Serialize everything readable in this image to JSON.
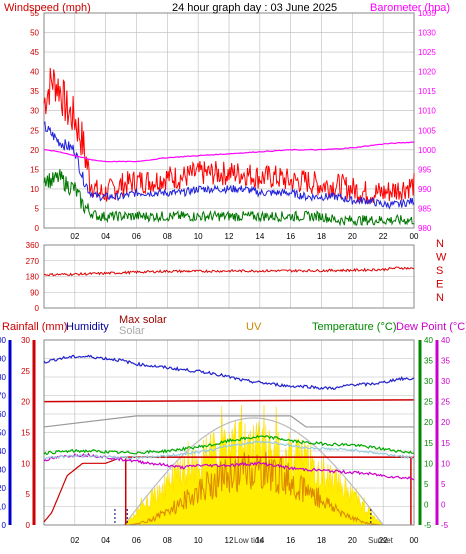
{
  "colors": {
    "wind_left": "#cc0000",
    "baro": "#ff00ff",
    "title": "#000000",
    "dir_letters": "#cc0000",
    "rain": "#cc0000",
    "humidity": "#000099",
    "maxsolar": "#990000",
    "solar": "#aaaaaa",
    "uv": "#cc8800",
    "temp": "#008800",
    "dew": "#cc00cc",
    "grid": "#bbbbbb",
    "blue_axis": "#0000cc"
  },
  "chart_data": [
    {
      "type": "line",
      "title": "24 hour graph day : 03 June 2025",
      "ylabel_left": "Windspeed (mph)",
      "ylabel_right": "Barometer (hpa)",
      "x_ticks": [
        "02",
        "04",
        "06",
        "08",
        "10",
        "12",
        "14",
        "16",
        "18",
        "20",
        "22",
        "00"
      ],
      "xlim_hours": [
        0,
        24
      ],
      "ylim_left": [
        0,
        55
      ],
      "y_ticks_left": [
        "0",
        "5",
        "10",
        "15",
        "20",
        "25",
        "30",
        "35",
        "40",
        "45",
        "50",
        "55"
      ],
      "ylim_right": [
        980,
        1035
      ],
      "y_ticks_right": [
        "980",
        "985",
        "990",
        "995",
        "1000",
        "1005",
        "1010",
        "1015",
        "1020",
        "1025",
        "1030",
        "1035"
      ],
      "grid": true,
      "series": [
        {
          "name": "gust",
          "color": "#ff0000",
          "x": [
            0,
            0.5,
            1,
            1.5,
            2,
            2.5,
            3,
            3.5,
            4,
            5,
            6,
            7,
            8,
            9,
            10,
            11,
            12,
            13,
            14,
            15,
            16,
            17,
            18,
            19,
            20,
            21,
            22,
            23,
            24
          ],
          "values": [
            32,
            38,
            36,
            30,
            28,
            22,
            12,
            9,
            9,
            11,
            12,
            12,
            13,
            13,
            14,
            14,
            14,
            14,
            13,
            13,
            12,
            12,
            11,
            11,
            10,
            9,
            9,
            10,
            11
          ]
        },
        {
          "name": "wind average",
          "color": "#2222dd",
          "x": [
            0,
            0.5,
            1,
            1.5,
            2,
            2.5,
            3,
            3.5,
            4,
            5,
            6,
            7,
            8,
            9,
            10,
            11,
            12,
            13,
            14,
            15,
            16,
            17,
            18,
            19,
            20,
            21,
            22,
            23,
            24
          ],
          "values": [
            26,
            24,
            22,
            21,
            20,
            13,
            9,
            8,
            8,
            8,
            9,
            9,
            9,
            9,
            10,
            10,
            10,
            10,
            9,
            9,
            9,
            8,
            8,
            8,
            7,
            7,
            6,
            6,
            7
          ]
        },
        {
          "name": "wind speed",
          "color": "#007700",
          "x": [
            0,
            0.5,
            1,
            1.5,
            2,
            2.5,
            3,
            3.5,
            4,
            5,
            6,
            7,
            8,
            9,
            10,
            11,
            12,
            13,
            14,
            15,
            16,
            17,
            18,
            19,
            20,
            21,
            22,
            23,
            24
          ],
          "values": [
            13,
            12,
            13,
            11,
            10,
            6,
            4,
            3,
            3,
            3,
            3,
            3,
            3,
            3,
            3,
            3,
            3,
            3,
            3,
            3,
            3,
            3,
            3,
            2,
            2,
            2,
            2,
            2,
            2
          ]
        },
        {
          "name": "barometer",
          "color": "#ff00ff",
          "x": [
            0,
            1,
            2,
            3,
            4,
            5,
            6,
            7,
            8,
            10,
            12,
            14,
            16,
            18,
            20,
            22,
            24
          ],
          "values": [
            1000,
            999.5,
            998.5,
            997.5,
            997,
            997,
            997,
            997.5,
            998,
            998.5,
            999,
            999.5,
            1000,
            1000,
            1000.5,
            1001.5,
            1002
          ]
        }
      ]
    },
    {
      "type": "line",
      "ylabel_left": "",
      "ylim": [
        0,
        360
      ],
      "y_ticks": [
        "0",
        "90",
        "180",
        "270",
        "360"
      ],
      "dir_letters": [
        "N",
        "W",
        "S",
        "E",
        "N"
      ],
      "xlim_hours": [
        0,
        24
      ],
      "grid": true,
      "series": [
        {
          "name": "wind direction",
          "color": "#dd0000",
          "x": [
            0,
            2,
            4,
            6,
            8,
            10,
            12,
            14,
            16,
            18,
            20,
            22,
            23,
            24
          ],
          "values": [
            190,
            193,
            198,
            205,
            210,
            210,
            212,
            212,
            213,
            214,
            216,
            220,
            230,
            225
          ]
        }
      ]
    },
    {
      "type": "line",
      "legend": [
        "Rainfall (mm)",
        "Humidity",
        "Max solar",
        "Solar",
        "UV",
        "Temperature (°C)",
        "Dew Point (°C)"
      ],
      "x_ticks": [
        "02",
        "04",
        "06",
        "08",
        "10",
        "12",
        "14",
        "16",
        "18",
        "20",
        "22",
        "00"
      ],
      "xlim_hours": [
        0,
        24
      ],
      "annotations": [
        "Low tide",
        "Sunset"
      ],
      "ylim_humidity": [
        0,
        100
      ],
      "y_ticks_humidity": [
        "0",
        "10",
        "20",
        "30",
        "40",
        "50",
        "60",
        "70",
        "80",
        "90",
        "100"
      ],
      "ylim_rain": [
        0,
        30
      ],
      "y_ticks_rain": [
        "0",
        "5",
        "10",
        "15",
        "20",
        "25",
        "30"
      ],
      "ylim_temp": [
        -5,
        40
      ],
      "y_ticks_temp": [
        "-5",
        "0",
        "5",
        "10",
        "15",
        "20",
        "25",
        "30",
        "35",
        "40"
      ],
      "grid": true,
      "series": [
        {
          "name": "Humidity",
          "color": "#2222cc",
          "x": [
            0,
            1,
            2,
            3,
            4,
            5,
            6,
            7,
            8,
            9,
            10,
            11,
            12,
            13,
            14,
            15,
            16,
            17,
            18,
            19,
            20,
            21,
            22,
            23,
            24
          ],
          "values": [
            88,
            90,
            91,
            91,
            90,
            89,
            87,
            86,
            85,
            84,
            83,
            82,
            80,
            78,
            77,
            76,
            75,
            75,
            74,
            74,
            76,
            76,
            77,
            79,
            79
          ]
        },
        {
          "name": "Rainfall (mm)",
          "color": "#cc0000",
          "x": [
            0,
            0.5,
            1,
            1.5,
            2,
            2.5,
            3,
            3.5,
            4,
            5,
            6,
            7,
            8,
            9,
            10,
            11,
            12,
            13,
            14,
            15,
            16,
            17,
            18,
            19,
            20,
            21,
            22,
            23,
            24
          ],
          "values": [
            0.5,
            2,
            5,
            8,
            9,
            10,
            10,
            10,
            10,
            11,
            11,
            11,
            11,
            11,
            11,
            11,
            11,
            11,
            11,
            11,
            11,
            11,
            11,
            11,
            11,
            11,
            11,
            11,
            11
          ]
        },
        {
          "name": "Temperature (°C)",
          "color": "#00aa00",
          "x": [
            0,
            1,
            2,
            3,
            4,
            5,
            6,
            7,
            8,
            9,
            10,
            11,
            12,
            13,
            14,
            15,
            16,
            17,
            18,
            19,
            20,
            21,
            22,
            23,
            24
          ],
          "values": [
            12.5,
            12.8,
            13,
            13,
            12.8,
            12.6,
            12.6,
            12.8,
            13,
            13.5,
            14,
            14.5,
            15.5,
            16,
            16.5,
            16.2,
            15.5,
            15,
            14.8,
            14.6,
            14.5,
            14,
            13.5,
            13,
            12.5
          ]
        },
        {
          "name": "Dew Point (°C)",
          "color": "#cc00cc",
          "x": [
            0,
            1,
            2,
            3,
            4,
            5,
            6,
            7,
            8,
            9,
            10,
            11,
            12,
            13,
            14,
            15,
            16,
            17,
            18,
            19,
            20,
            21,
            22,
            23,
            24
          ],
          "values": [
            10.8,
            11.5,
            12,
            12,
            11.5,
            11,
            10.5,
            10,
            9.5,
            9,
            9.5,
            9.5,
            9.5,
            9.8,
            10,
            9.5,
            8.8,
            8.5,
            8.3,
            8,
            7.8,
            7.5,
            7,
            6.6,
            6.3
          ]
        },
        {
          "name": "Max solar",
          "color": "#990000",
          "x": [
            0,
            24
          ],
          "values": [
            0,
            0
          ]
        },
        {
          "name": "Solar",
          "color": "#aaaaaa",
          "x": [
            0,
            24
          ],
          "values": [
            0,
            0
          ]
        },
        {
          "name": "UV",
          "color": "#cc8800",
          "x": [
            0,
            24
          ],
          "values": [
            0,
            0
          ]
        }
      ]
    }
  ]
}
